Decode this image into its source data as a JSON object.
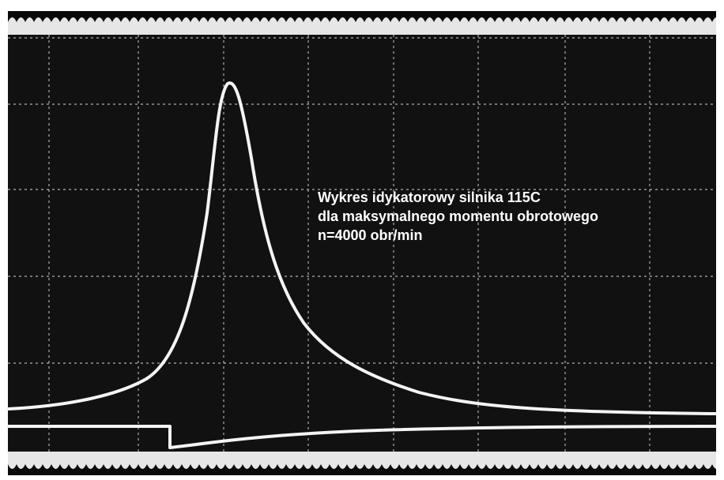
{
  "caption": {
    "lines": [
      "Wykres idykatorowy silnika 115C",
      "dla maksymalnego momentu obrotowego",
      "n=4000 obr/min"
    ]
  }
}
